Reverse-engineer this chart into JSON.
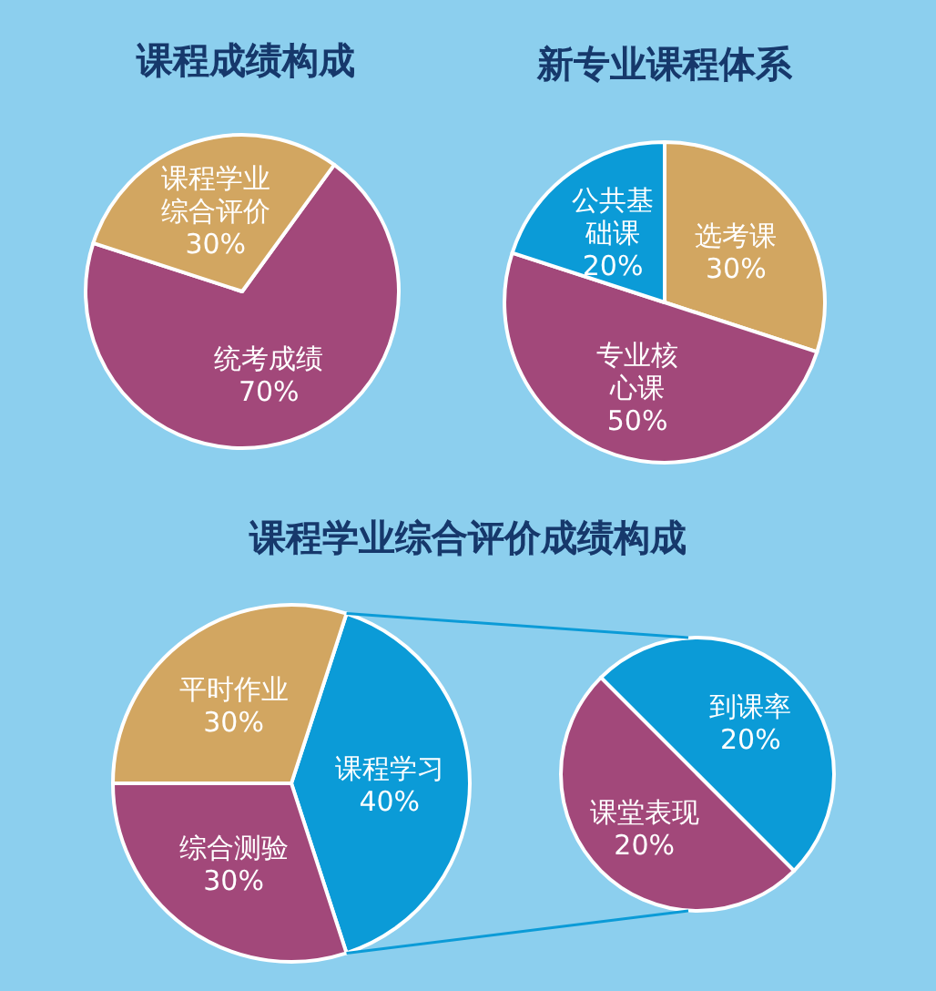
{
  "chart_data": [
    {
      "type": "pie",
      "title": "课程成绩构成",
      "categories": [
        "统考成绩",
        "课程学业综合评价"
      ],
      "values": [
        70,
        30
      ],
      "colors": [
        "#a2487a",
        "#d2a661"
      ],
      "value_labels": [
        "70%",
        "30%"
      ]
    },
    {
      "type": "pie",
      "title": "新专业课程体系",
      "categories": [
        "选考课",
        "专业核心课",
        "公共基础课"
      ],
      "values": [
        30,
        50,
        20
      ],
      "colors": [
        "#d2a661",
        "#a2487a",
        "#0b9bd7"
      ],
      "value_labels": [
        "30%",
        "50%",
        "20%"
      ]
    },
    {
      "type": "pie",
      "title": "课程学业综合评价成绩构成",
      "categories": [
        "课程学习",
        "综合测验",
        "平时作业"
      ],
      "values": [
        40,
        30,
        30
      ],
      "colors": [
        "#0b9bd7",
        "#a2487a",
        "#d2a661"
      ],
      "value_labels": [
        "40%",
        "30%",
        "30%"
      ]
    },
    {
      "type": "pie",
      "categories": [
        "到课率",
        "课堂表现"
      ],
      "values": [
        20,
        20
      ],
      "colors": [
        "#0b9bd7",
        "#a2487a"
      ],
      "value_labels": [
        "20%",
        "20%"
      ]
    }
  ]
}
